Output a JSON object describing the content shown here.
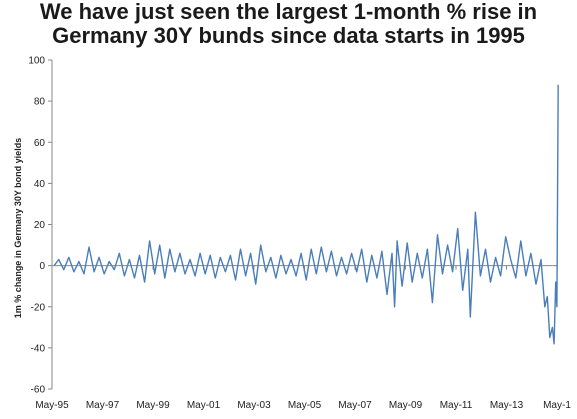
{
  "chart_data": {
    "type": "line",
    "title_lines": [
      "We have just seen the largest 1-month % rise in",
      "Germany 30Y bunds since data starts in 1995"
    ],
    "xlabel": "",
    "ylabel": "1m % change in Germany 30Y bond yields",
    "ylim": [
      -60,
      100
    ],
    "yticks": [
      -60,
      -40,
      -20,
      0,
      20,
      40,
      60,
      80,
      100
    ],
    "xlim": [
      "1995-05",
      "2015-05"
    ],
    "xtick_labels": [
      "May-95",
      "May-97",
      "May-99",
      "May-01",
      "May-03",
      "May-05",
      "May-07",
      "May-09",
      "May-11",
      "May-13",
      "May-1"
    ],
    "xtick_dates": [
      "1995-05",
      "1997-05",
      "1999-05",
      "2001-05",
      "2003-05",
      "2005-05",
      "2007-05",
      "2009-05",
      "2011-05",
      "2013-05",
      "2015-05"
    ],
    "grid": false,
    "line_color": "#4a7ebb",
    "series": [
      {
        "values": [
          [
            1995.42,
            0
          ],
          [
            1995.6,
            3
          ],
          [
            1995.8,
            -2
          ],
          [
            1996.0,
            4
          ],
          [
            1996.2,
            -3
          ],
          [
            1996.4,
            2
          ],
          [
            1996.6,
            -4
          ],
          [
            1996.8,
            9
          ],
          [
            1997.0,
            -3
          ],
          [
            1997.2,
            4
          ],
          [
            1997.4,
            -4
          ],
          [
            1997.6,
            2
          ],
          [
            1997.8,
            -2
          ],
          [
            1998.0,
            6
          ],
          [
            1998.2,
            -5
          ],
          [
            1998.4,
            3
          ],
          [
            1998.6,
            -6
          ],
          [
            1998.8,
            5
          ],
          [
            1999.0,
            -8
          ],
          [
            1999.2,
            12
          ],
          [
            1999.4,
            -4
          ],
          [
            1999.6,
            10
          ],
          [
            1999.8,
            -6
          ],
          [
            2000.0,
            8
          ],
          [
            2000.2,
            -3
          ],
          [
            2000.4,
            6
          ],
          [
            2000.6,
            -4
          ],
          [
            2000.8,
            3
          ],
          [
            2001.0,
            -5
          ],
          [
            2001.2,
            6
          ],
          [
            2001.4,
            -4
          ],
          [
            2001.6,
            5
          ],
          [
            2001.8,
            -6
          ],
          [
            2002.0,
            4
          ],
          [
            2002.2,
            -3
          ],
          [
            2002.4,
            5
          ],
          [
            2002.6,
            -7
          ],
          [
            2002.8,
            8
          ],
          [
            2003.0,
            -5
          ],
          [
            2003.2,
            6
          ],
          [
            2003.4,
            -9
          ],
          [
            2003.6,
            10
          ],
          [
            2003.8,
            -3
          ],
          [
            2004.0,
            4
          ],
          [
            2004.2,
            -6
          ],
          [
            2004.4,
            5
          ],
          [
            2004.6,
            -4
          ],
          [
            2004.8,
            3
          ],
          [
            2005.0,
            -5
          ],
          [
            2005.2,
            6
          ],
          [
            2005.4,
            -7
          ],
          [
            2005.6,
            8
          ],
          [
            2005.8,
            -4
          ],
          [
            2006.0,
            9
          ],
          [
            2006.2,
            -3
          ],
          [
            2006.4,
            7
          ],
          [
            2006.6,
            -5
          ],
          [
            2006.8,
            4
          ],
          [
            2007.0,
            -4
          ],
          [
            2007.2,
            6
          ],
          [
            2007.4,
            -3
          ],
          [
            2007.6,
            8
          ],
          [
            2007.8,
            -8
          ],
          [
            2008.0,
            5
          ],
          [
            2008.2,
            -6
          ],
          [
            2008.4,
            7
          ],
          [
            2008.6,
            -14
          ],
          [
            2008.8,
            6
          ],
          [
            2008.9,
            -20
          ],
          [
            2009.0,
            12
          ],
          [
            2009.2,
            -10
          ],
          [
            2009.4,
            11
          ],
          [
            2009.6,
            -8
          ],
          [
            2009.8,
            6
          ],
          [
            2010.0,
            -6
          ],
          [
            2010.2,
            8
          ],
          [
            2010.4,
            -18
          ],
          [
            2010.6,
            15
          ],
          [
            2010.8,
            -4
          ],
          [
            2011.0,
            10
          ],
          [
            2011.2,
            -3
          ],
          [
            2011.4,
            18
          ],
          [
            2011.6,
            -12
          ],
          [
            2011.8,
            8
          ],
          [
            2011.9,
            -25
          ],
          [
            2012.1,
            26
          ],
          [
            2012.3,
            -5
          ],
          [
            2012.5,
            8
          ],
          [
            2012.7,
            -8
          ],
          [
            2012.9,
            4
          ],
          [
            2013.1,
            -5
          ],
          [
            2013.3,
            14
          ],
          [
            2013.5,
            3
          ],
          [
            2013.7,
            -6
          ],
          [
            2013.9,
            12
          ],
          [
            2014.1,
            -5
          ],
          [
            2014.3,
            6
          ],
          [
            2014.5,
            -9
          ],
          [
            2014.7,
            3
          ],
          [
            2014.85,
            -20
          ],
          [
            2014.95,
            -15
          ],
          [
            2015.05,
            -35
          ],
          [
            2015.15,
            -30
          ],
          [
            2015.22,
            -38
          ],
          [
            2015.28,
            -8
          ],
          [
            2015.33,
            -20
          ],
          [
            2015.38,
            88
          ]
        ]
      }
    ]
  }
}
